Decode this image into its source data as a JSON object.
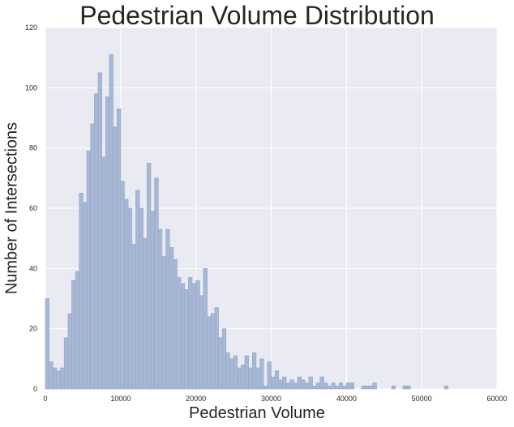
{
  "chart_data": {
    "type": "bar",
    "title": "Pedestrian Volume Distribution",
    "xlabel": "Pedestrian Volume",
    "ylabel": "Number of Intersections",
    "xlim": [
      0,
      60000
    ],
    "ylim": [
      0,
      120
    ],
    "xticks": [
      "0",
      "10000",
      "20000",
      "30000",
      "40000",
      "50000",
      "60000"
    ],
    "yticks": [
      "0",
      "20",
      "40",
      "60",
      "80",
      "100",
      "120"
    ],
    "grid": true,
    "bin_width": 500,
    "bin_start": 0,
    "values": [
      30,
      9,
      7,
      6,
      7,
      17,
      25,
      36,
      39,
      65,
      62,
      79,
      88,
      98,
      105,
      77,
      97,
      111,
      87,
      93,
      69,
      63,
      60,
      48,
      66,
      60,
      50,
      75,
      59,
      70,
      53,
      44,
      53,
      47,
      43,
      37,
      35,
      33,
      37,
      35,
      36,
      31,
      40,
      24,
      25,
      27,
      17,
      20,
      12,
      10,
      11,
      7,
      8,
      11,
      7,
      12,
      7,
      10,
      1,
      9,
      4,
      6,
      3,
      4,
      2,
      3,
      2,
      4,
      3,
      2,
      4,
      1,
      2,
      4,
      2,
      1,
      2,
      1,
      2,
      1,
      2,
      2,
      0,
      0,
      1,
      1,
      1,
      2,
      0,
      0,
      0,
      0,
      1,
      0,
      0,
      1,
      1,
      0,
      0,
      0,
      0,
      0,
      0,
      0,
      0,
      0,
      1
    ],
    "colors": {
      "background": "#eaeaf2",
      "grid": "#ffffff",
      "bar_fill": "#a7b8d6",
      "bar_edge": "#97a6c3"
    }
  }
}
